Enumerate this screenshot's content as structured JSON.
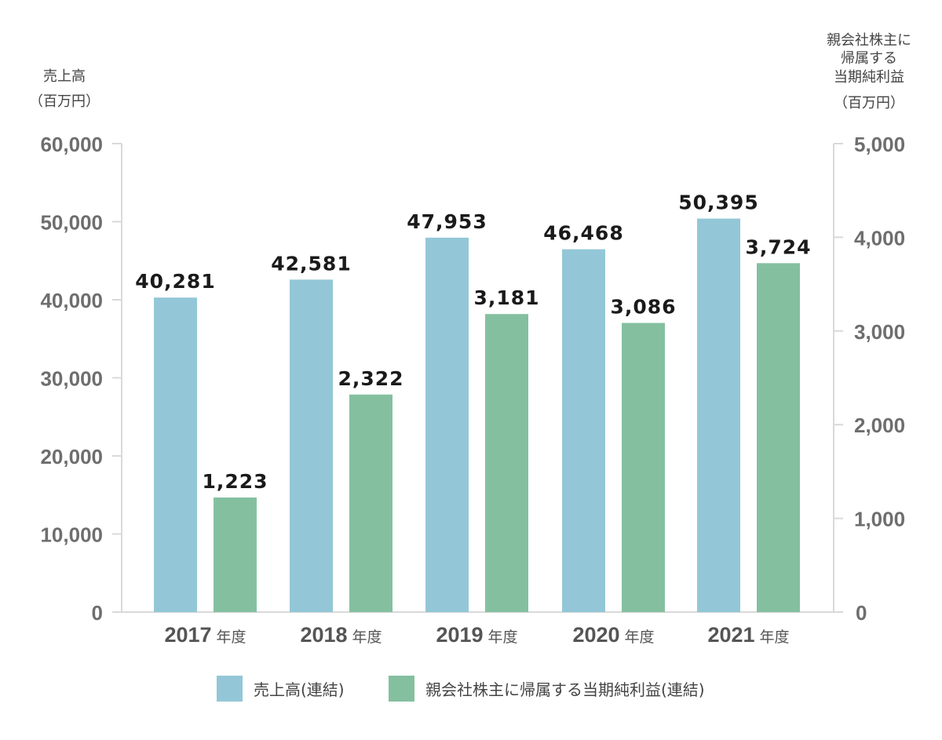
{
  "chart_data": {
    "type": "bar",
    "categories": [
      "2017",
      "2018",
      "2019",
      "2020",
      "2021"
    ],
    "category_suffix": "年度",
    "series": [
      {
        "name": "売上高(連結)",
        "axis": "left",
        "color": "#93c7d7",
        "values": [
          40281,
          42581,
          47953,
          46468,
          50395
        ],
        "labels": [
          "40,281",
          "42,581",
          "47,953",
          "46,468",
          "50,395"
        ]
      },
      {
        "name": "親会社株主に帰属する当期純利益(連結)",
        "axis": "right",
        "color": "#84c09f",
        "values": [
          1223,
          2322,
          3181,
          3086,
          3724
        ],
        "labels": [
          "1,223",
          "2,322",
          "3,181",
          "3,086",
          "3,724"
        ]
      }
    ],
    "y_left": {
      "title_lines": [
        "売上高",
        "（百万円）"
      ],
      "range": [
        0,
        60000
      ],
      "ticks": [
        0,
        10000,
        20000,
        30000,
        40000,
        50000,
        60000
      ],
      "tick_labels": [
        "0",
        "10,000",
        "20,000",
        "30,000",
        "40,000",
        "50,000",
        "60,000"
      ]
    },
    "y_right": {
      "title_lines": [
        "親会社株主に",
        "帰属する",
        "当期純利益",
        "（百万円）"
      ],
      "range": [
        0,
        5000
      ],
      "ticks": [
        0,
        1000,
        2000,
        3000,
        4000,
        5000
      ],
      "tick_labels": [
        "0",
        "1,000",
        "2,000",
        "3,000",
        "4,000",
        "5,000"
      ]
    },
    "legend_position": "bottom",
    "grid": false
  }
}
